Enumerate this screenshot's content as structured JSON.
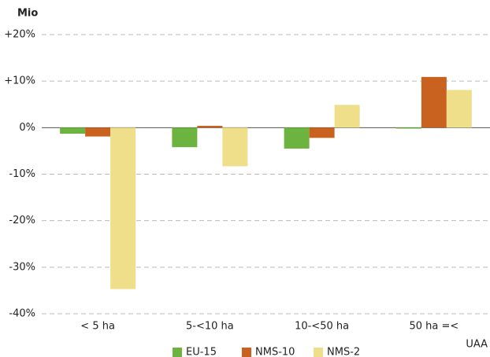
{
  "chart_data": {
    "type": "bar",
    "y_axis_label": "Mio",
    "x_axis_label": "UAA",
    "categories": [
      "< 5 ha",
      "5-<10 ha",
      "10-<50 ha",
      "50 ha =<"
    ],
    "series": [
      {
        "name": "EU-15",
        "color": "#6db33f",
        "values": [
          -1.3,
          -4.2,
          -4.5,
          -0.2
        ]
      },
      {
        "name": "NMS-10",
        "color": "#c9611f",
        "values": [
          -1.9,
          0.4,
          -2.2,
          10.9
        ]
      },
      {
        "name": "NMS-2",
        "color": "#f0df8a",
        "values": [
          -34.7,
          -8.3,
          4.9,
          8.1
        ]
      }
    ],
    "ylim": [
      -40,
      20
    ],
    "yticks": [
      {
        "value": 20,
        "label": "+20%"
      },
      {
        "value": 10,
        "label": "+10%"
      },
      {
        "value": 0,
        "label": "0%"
      },
      {
        "value": -10,
        "label": "-10%"
      },
      {
        "value": -20,
        "label": "-20%"
      },
      {
        "value": -30,
        "label": "-30%"
      },
      {
        "value": -40,
        "label": "-40%"
      }
    ],
    "grid": true,
    "legend": "bottom"
  }
}
